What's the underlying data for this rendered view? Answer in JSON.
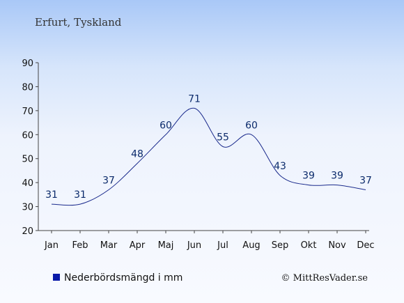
{
  "chart_data": {
    "type": "line",
    "title": "Erfurt, Tyskland",
    "categories": [
      "Jan",
      "Feb",
      "Mar",
      "Apr",
      "Maj",
      "Jun",
      "Jul",
      "Aug",
      "Sep",
      "Okt",
      "Nov",
      "Dec"
    ],
    "series": [
      {
        "name": "Nederbördsmängd i mm",
        "values": [
          31,
          31,
          37,
          48,
          60,
          71,
          55,
          60,
          43,
          39,
          39,
          37
        ]
      }
    ],
    "y_ticks": [
      20,
      30,
      40,
      50,
      60,
      70,
      80,
      90
    ],
    "ylim": [
      20,
      90
    ],
    "grid": false,
    "legend_position": "bottom-left",
    "line_color": "#1a2a8c",
    "legend_color": "#0a1aa8"
  },
  "footer": {
    "copyright": "© MittResVader.se"
  }
}
